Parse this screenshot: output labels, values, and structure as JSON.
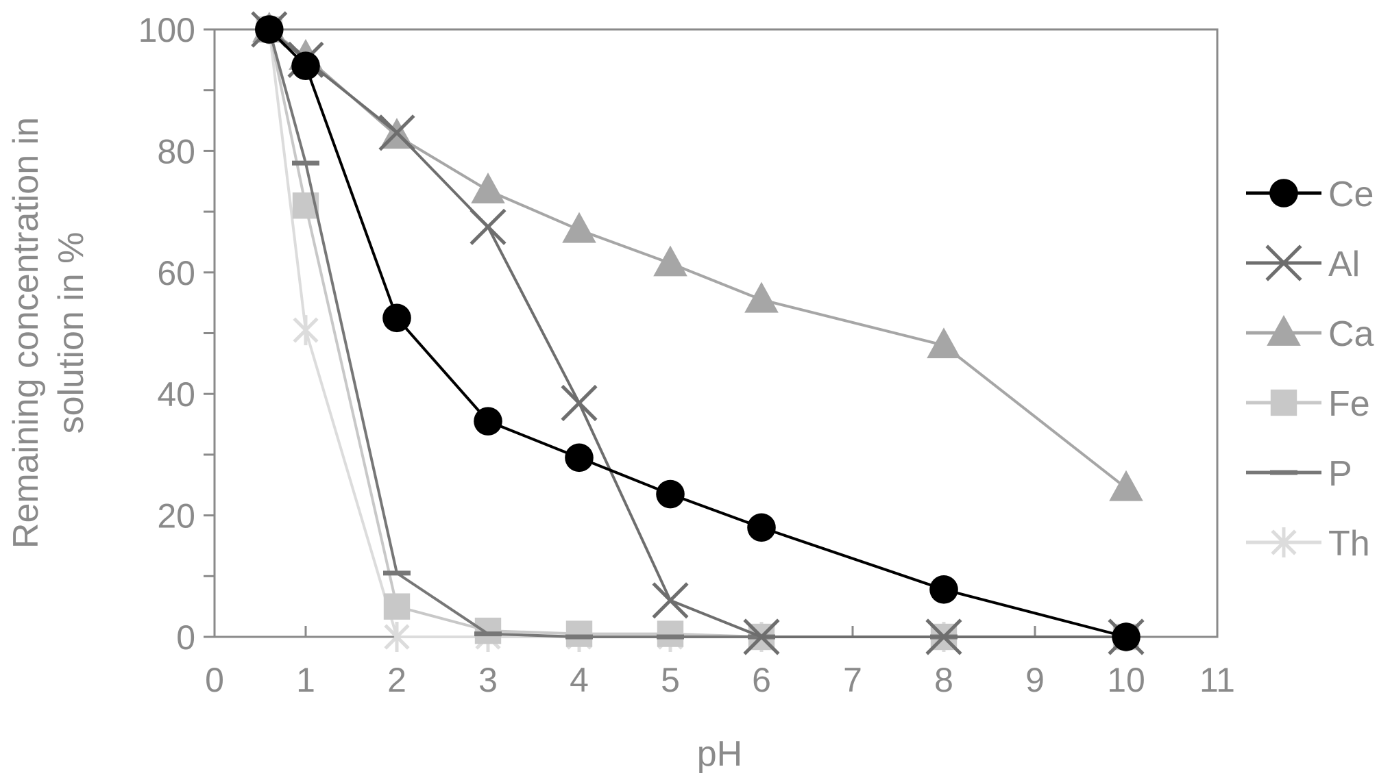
{
  "chart_data": {
    "type": "line",
    "title": "",
    "xlabel": "pH",
    "ylabel_lines": [
      "Remaining concentration in",
      "solution in %"
    ],
    "xlim": [
      0,
      11
    ],
    "ylim": [
      0,
      100
    ],
    "x_ticks": [
      0,
      1,
      2,
      3,
      4,
      5,
      6,
      7,
      8,
      9,
      10,
      11
    ],
    "y_ticks": [
      0,
      20,
      40,
      60,
      80,
      100
    ],
    "grid": false,
    "legend_position": "right",
    "series": [
      {
        "name": "Ce",
        "color": "#000000",
        "marker": "circle",
        "x": [
          0.6,
          1,
          2,
          3,
          4,
          5,
          6,
          8,
          10
        ],
        "y": [
          100,
          94,
          52.5,
          35.5,
          29.5,
          23.5,
          18,
          7.8,
          0
        ]
      },
      {
        "name": "Al",
        "color": "#6e6e6e",
        "marker": "x",
        "x": [
          0.6,
          1,
          2,
          3,
          4,
          5,
          6,
          8,
          10
        ],
        "y": [
          100,
          95,
          83,
          67.5,
          38.5,
          6,
          0,
          0,
          0
        ]
      },
      {
        "name": "Ca",
        "color": "#a6a6a6",
        "marker": "triangle",
        "x": [
          0.6,
          1,
          2,
          3,
          4,
          5,
          6,
          8,
          10
        ],
        "y": [
          100,
          95.5,
          82.5,
          73.5,
          67,
          61.5,
          55.5,
          48,
          24.5
        ]
      },
      {
        "name": "Fe",
        "color": "#c8c8c8",
        "marker": "square",
        "x": [
          0.6,
          1,
          2,
          3,
          4,
          5,
          6,
          8,
          10
        ],
        "y": [
          100,
          71,
          5,
          1,
          0.5,
          0.5,
          0,
          0,
          0
        ]
      },
      {
        "name": "P",
        "color": "#777777",
        "marker": "dash",
        "x": [
          0.6,
          1,
          2,
          3,
          4,
          5,
          6,
          8,
          10
        ],
        "y": [
          100,
          78,
          10.5,
          0.5,
          0,
          0,
          0,
          0,
          0
        ]
      },
      {
        "name": "Th",
        "color": "#dcdcdc",
        "marker": "star",
        "x": [
          0.6,
          1,
          2,
          3,
          4,
          5,
          6,
          8,
          10
        ],
        "y": [
          100,
          50.5,
          0,
          0,
          0,
          0,
          0,
          0,
          0
        ]
      }
    ]
  }
}
